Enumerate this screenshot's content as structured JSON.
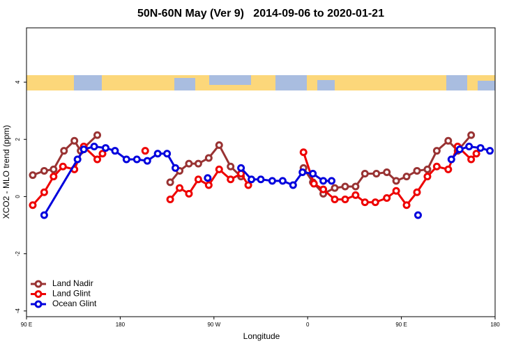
{
  "chart_data": {
    "type": "line",
    "title": "50N-60N May (Ver 9)   2014-09-06 to 2020-01-21",
    "x_label": "Longitude",
    "y_label": "XCO2 - MLO trend (ppm)",
    "xlim": [
      90,
      540
    ],
    "ylim": [
      -4.2,
      5.9
    ],
    "xticks": [
      {
        "value": 90,
        "label": "90 E"
      },
      180,
      {
        "value": 270,
        "label": "90 W"
      },
      {
        "value": 360,
        "label": "0"
      },
      {
        "value": 450,
        "label": "90 E"
      },
      {
        "value": 540,
        "label": "180"
      }
    ],
    "yticks": [
      -4,
      -2,
      0,
      2,
      4
    ],
    "legend": "bottom-left",
    "series": [
      {
        "name": "Land Nadir",
        "color": "#993333",
        "x": [
          96,
          107,
          116,
          126,
          136,
          142,
          158,
          null,
          228,
          237,
          246,
          255,
          265,
          275,
          286,
          296,
          null,
          356,
          365,
          375,
          386,
          396,
          406,
          415,
          426,
          436,
          445,
          455,
          465,
          475,
          484,
          495,
          504,
          517
        ],
        "values": [
          0.75,
          0.9,
          0.95,
          1.6,
          1.95,
          1.6,
          2.15,
          null,
          0.5,
          0.9,
          1.15,
          1.15,
          1.35,
          1.8,
          1.05,
          0.7,
          null,
          1.0,
          0.5,
          0.1,
          0.3,
          0.35,
          0.35,
          0.8,
          0.8,
          0.85,
          0.55,
          0.7,
          0.9,
          0.95,
          1.6,
          1.95,
          1.6,
          2.15
        ]
      },
      {
        "name": "Land Glint",
        "color": "#ee0000",
        "x": [
          96,
          107,
          116,
          125,
          136,
          145,
          158,
          163,
          null,
          204,
          null,
          228,
          237,
          246,
          255,
          265,
          275,
          286,
          296,
          303,
          null,
          356,
          366,
          375,
          386,
          396,
          406,
          415,
          425,
          436,
          445,
          455,
          465,
          475,
          484,
          495,
          504,
          517,
          522
        ],
        "values": [
          -0.3,
          0.15,
          0.7,
          1.05,
          0.95,
          1.75,
          1.3,
          1.5,
          null,
          1.6,
          null,
          -0.1,
          0.3,
          0.1,
          0.6,
          0.4,
          0.95,
          0.6,
          0.8,
          0.4,
          null,
          1.55,
          0.45,
          0.25,
          -0.1,
          -0.1,
          0.05,
          -0.2,
          -0.2,
          -0.05,
          0.2,
          -0.3,
          0.15,
          0.7,
          1.05,
          0.95,
          1.75,
          1.3,
          1.5
        ]
      },
      {
        "name": "Ocean Glint",
        "color": "#0000dd",
        "x": [
          107,
          139,
          145,
          155,
          166,
          175,
          186,
          196,
          206,
          216,
          225,
          233,
          null,
          264,
          null,
          296,
          306,
          315,
          326,
          336,
          346,
          355,
          365,
          375,
          383,
          null,
          466,
          null,
          498,
          506,
          515,
          526,
          535
        ],
        "values": [
          -0.65,
          1.3,
          1.65,
          1.75,
          1.7,
          1.6,
          1.3,
          1.3,
          1.25,
          1.5,
          1.5,
          1.0,
          null,
          0.65,
          null,
          1.0,
          0.6,
          0.6,
          0.55,
          0.55,
          0.4,
          0.85,
          0.8,
          0.55,
          0.55,
          null,
          -0.65,
          null,
          1.3,
          1.65,
          1.75,
          1.7,
          1.6
        ]
      }
    ]
  }
}
